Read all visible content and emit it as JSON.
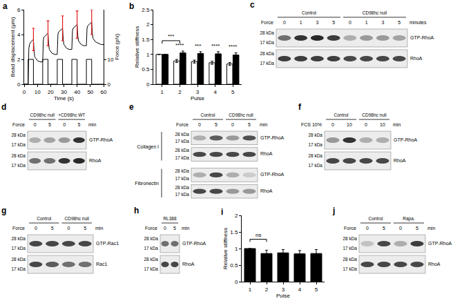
{
  "chart_data": [
    {
      "panel_label": "a",
      "type": "line",
      "x_label": "Time (s)",
      "y_label": "Bead displacement (μm)",
      "y2_label": "Force (pN)",
      "xlim": [
        0,
        60
      ],
      "xticks": [
        0,
        10,
        20,
        30,
        40,
        50,
        60
      ],
      "ylim": [
        0,
        6
      ],
      "yticks": [
        0,
        2,
        4,
        6
      ],
      "y2lim": [
        0,
        30
      ],
      "y2ticks": [
        0,
        10
      ],
      "grid": false,
      "series": [
        {
          "color": "#000000",
          "x": [
            0,
            3,
            3.5,
            4,
            5,
            6,
            7,
            7.5,
            8,
            10,
            12,
            14,
            14.5,
            15,
            16,
            17,
            18,
            18.5,
            19,
            21,
            23,
            25,
            25.5,
            26,
            27,
            28,
            29,
            29.5,
            30,
            32,
            34,
            36,
            36.5,
            37,
            38,
            39,
            40,
            40.5,
            41,
            43,
            45,
            47,
            47.5,
            48,
            49,
            50,
            51,
            51.5,
            52,
            54,
            56,
            58,
            60
          ],
          "values": [
            0,
            0,
            2.8,
            3.2,
            3.4,
            3.5,
            3.6,
            2.6,
            2.2,
            1.9,
            1.8,
            1.8,
            3.6,
            3.8,
            3.9,
            4.0,
            4.1,
            3.2,
            2.8,
            2.5,
            2.4,
            2.4,
            4.0,
            4.2,
            4.3,
            4.4,
            4.5,
            3.6,
            3.2,
            2.9,
            2.8,
            2.8,
            4.3,
            4.5,
            4.6,
            4.7,
            4.8,
            3.9,
            3.5,
            3.2,
            3.1,
            3.1,
            4.5,
            4.7,
            4.8,
            4.9,
            5.0,
            4.1,
            3.7,
            3.4,
            3.3,
            3.2,
            3.2
          ],
          "errors": [
            null,
            null,
            null,
            null,
            null,
            null,
            0.9,
            null,
            null,
            null,
            null,
            null,
            null,
            null,
            null,
            null,
            1.0,
            null,
            null,
            null,
            null,
            null,
            null,
            null,
            null,
            null,
            1.0,
            null,
            null,
            null,
            null,
            null,
            null,
            null,
            null,
            null,
            1.1,
            null,
            null,
            null,
            null,
            null,
            null,
            null,
            null,
            null,
            1.0,
            null,
            null,
            null,
            null,
            null,
            null
          ]
        },
        {
          "color": "#000000",
          "axis": "y2",
          "line_style": "step",
          "x": [
            0,
            3,
            7,
            14,
            18,
            25,
            29,
            36,
            40,
            47,
            51,
            60
          ],
          "values": [
            0,
            10,
            0,
            10,
            0,
            10,
            0,
            10,
            0,
            10,
            0,
            0
          ]
        }
      ]
    },
    {
      "panel_label": "b",
      "type": "bar",
      "x_label": "Pulse",
      "y_label": "Relative stiffness",
      "categories": [
        "1",
        "2",
        "3",
        "4",
        "5"
      ],
      "ylim": [
        0,
        2.5
      ],
      "yticks": [
        0,
        0.5,
        1,
        1.5,
        2,
        2.5
      ],
      "grid": false,
      "series": [
        {
          "color": "#ffffff",
          "values": [
            1,
            0.78,
            0.76,
            0.72,
            0.68
          ],
          "errors": [
            0,
            0.05,
            0.05,
            0.05,
            0.05
          ]
        },
        {
          "color": "#000000",
          "values": [
            1,
            1.05,
            1.03,
            1.02,
            0.98
          ],
          "errors": [
            0,
            0.06,
            0.06,
            0.07,
            0.07
          ]
        }
      ],
      "significance": [
        {
          "categories": [
            "1",
            "2"
          ],
          "text": "***"
        },
        {
          "categories": [
            "2"
          ],
          "text": "****"
        },
        {
          "categories": [
            "3"
          ],
          "text": "***"
        },
        {
          "categories": [
            "4"
          ],
          "text": "****"
        },
        {
          "categories": [
            "5"
          ],
          "text": "****"
        }
      ]
    },
    {
      "panel_label": "i",
      "type": "bar",
      "x_label": "Pulse",
      "y_label": "Relative stiffness",
      "categories": [
        "1",
        "2",
        "3",
        "4",
        "5"
      ],
      "ylim": [
        0,
        2
      ],
      "yticks": [
        0,
        0.5,
        1,
        1.5,
        2
      ],
      "grid": false,
      "series": [
        {
          "color": "#000000",
          "values": [
            1,
            0.85,
            0.87,
            0.84,
            0.85
          ],
          "errors": [
            0,
            0.1,
            0.1,
            0.1,
            0.12
          ]
        }
      ],
      "significance": [
        {
          "categories": [
            "1",
            "2"
          ],
          "text": "ns"
        }
      ]
    }
  ],
  "blots": [
    {
      "panel_label": "c",
      "lane_label": "Force",
      "unit": "minutes",
      "groups": [
        {
          "name": "Control",
          "lanes": [
            0,
            1,
            3,
            5
          ]
        },
        {
          "name": "CD98hc null",
          "lanes": [
            0,
            1,
            3,
            5
          ]
        }
      ],
      "sections": [
        {
          "rows": [
            {
              "protein": "GTP-RhoA",
              "markers": [
                "28 kDa",
                "17 kDa"
              ],
              "bands": [
                0.6,
                0.9,
                0.95,
                0.85,
                0.3,
                0.4,
                0.4,
                0.35
              ]
            },
            {
              "protein": "RhoA",
              "markers": [
                "28 kDa",
                "17 kDa"
              ],
              "bands": [
                0.85,
                0.85,
                0.85,
                0.85,
                0.8,
                0.8,
                0.8,
                0.8
              ]
            }
          ]
        }
      ]
    },
    {
      "panel_label": "d",
      "lane_label": "Force",
      "unit": "min",
      "groups": [
        {
          "name": "CD98hc null",
          "lanes": [
            0,
            5
          ]
        },
        {
          "name": "+CD98hc WT",
          "lanes": [
            0,
            5
          ]
        }
      ],
      "sections": [
        {
          "rows": [
            {
              "protein": "GTP-RhoA",
              "markers": [
                "28 kDa",
                "17 kDa"
              ],
              "bands": [
                0.3,
                0.35,
                0.4,
                0.9
              ]
            },
            {
              "protein": "RhoA",
              "markers": [
                "28 kDa",
                "17 kDa"
              ],
              "bands": [
                0.6,
                0.6,
                0.9,
                0.95
              ]
            }
          ]
        }
      ]
    },
    {
      "panel_label": "e",
      "lane_label": "Force",
      "unit": "min",
      "groups": [
        {
          "name": "Control",
          "lanes": [
            0,
            5
          ]
        },
        {
          "name": "CD98hc null",
          "lanes": [
            0,
            5
          ]
        }
      ],
      "sections": [
        {
          "name": "Collagen I",
          "rows": [
            {
              "protein": "GTP-RhoA",
              "markers": [
                "28 kDa",
                "17 kDa"
              ],
              "bands": [
                0.3,
                0.7,
                0.4,
                0.75
              ]
            },
            {
              "protein": "RhoA",
              "markers": [
                "28 kDa",
                "17 kDa"
              ],
              "bands": [
                0.8,
                0.8,
                0.8,
                0.8
              ]
            }
          ]
        },
        {
          "name": "Fibronectin",
          "rows": [
            {
              "protein": "GTP-RhoA",
              "markers": [
                "28 kDa",
                "17 kDa"
              ],
              "bands": [
                0.3,
                0.8,
                0.3,
                0.15
              ]
            },
            {
              "protein": "RhoA",
              "markers": [
                "28 kDa",
                "17 kDa"
              ],
              "bands": [
                0.8,
                0.8,
                0.4,
                0.4
              ]
            }
          ]
        }
      ]
    },
    {
      "panel_label": "f",
      "lane_label": "FCS 10%",
      "unit": "min",
      "groups": [
        {
          "name": "Control",
          "lanes": [
            0,
            10
          ]
        },
        {
          "name": "CD98hc null",
          "lanes": [
            0,
            10
          ]
        }
      ],
      "sections": [
        {
          "rows": [
            {
              "protein": "GTP-RhoA",
              "markers": [
                "28 kDa",
                "17 kDa"
              ],
              "bands": [
                0.4,
                0.9,
                0.3,
                0.3
              ]
            },
            {
              "protein": "RhoA",
              "markers": [
                "28 kDa",
                "17 kDa"
              ],
              "bands": [
                0.8,
                0.8,
                0.8,
                0.8
              ]
            }
          ]
        }
      ]
    },
    {
      "panel_label": "g",
      "lane_label": "Force",
      "unit": "min",
      "groups": [
        {
          "name": "Control",
          "lanes": [
            0,
            5
          ]
        },
        {
          "name": "CD98hc null",
          "lanes": [
            0,
            5
          ]
        }
      ],
      "sections": [
        {
          "rows": [
            {
              "protein": "GTP-Rac1",
              "markers": [
                "28 kDa",
                "17 kDa"
              ],
              "bands": [
                0.8,
                0.8,
                0.8,
                0.8
              ]
            },
            {
              "protein": "Rac1",
              "markers": [
                "28 kDa",
                "17 kDa"
              ],
              "bands": [
                0.8,
                0.7,
                0.6,
                0.6
              ]
            }
          ]
        }
      ]
    },
    {
      "panel_label": "h",
      "lane_label": "Force",
      "unit": "min",
      "groups": [
        {
          "name": "RL388",
          "lanes": [
            0,
            5
          ]
        }
      ],
      "sections": [
        {
          "rows": [
            {
              "protein": "GTP-RhoA",
              "markers": [
                "28 kDa",
                "17 kDa"
              ],
              "bands": [
                0.6,
                0.6
              ]
            },
            {
              "protein": "RhoA",
              "markers": [
                "28 kDa",
                "17 kDa"
              ],
              "bands": [
                0.8,
                0.8
              ]
            }
          ]
        }
      ]
    },
    {
      "panel_label": "j",
      "lane_label": "Force",
      "unit": "min",
      "groups": [
        {
          "name": "Control",
          "lanes": [
            0,
            5
          ]
        },
        {
          "name": "Rapa.",
          "lanes": [
            0,
            5
          ]
        }
      ],
      "sections": [
        {
          "rows": [
            {
              "protein": "GTP-RhoA",
              "markers": [
                "28 kDa",
                "17 kDa"
              ],
              "bands": [
                0.2,
                0.8,
                0.3,
                0.85
              ]
            },
            {
              "protein": "RhoA",
              "markers": [
                "28 kDa",
                "17 kDa"
              ],
              "bands": [
                0.8,
                0.8,
                0.8,
                0.8
              ]
            }
          ]
        }
      ]
    }
  ]
}
